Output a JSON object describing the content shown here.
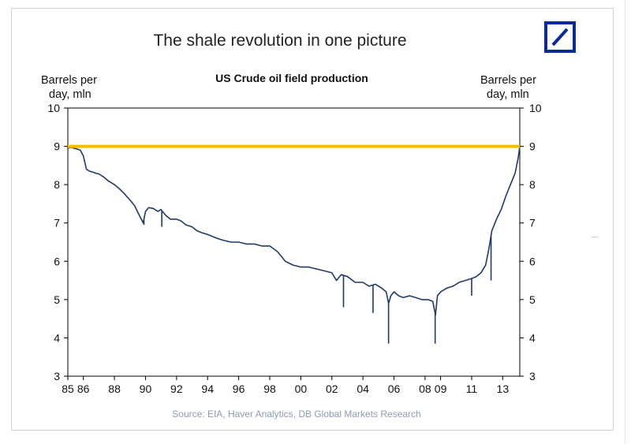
{
  "chart_data": {
    "type": "line",
    "title": "The shale revolution in one picture",
    "subtitle": "US Crude oil field production",
    "ylabel_left": [
      "Barrels per",
      "day, mln"
    ],
    "ylabel_right": [
      "Barrels per",
      "day, mln"
    ],
    "source": "Source: EIA, Haver Analytics, DB Global Markets Research",
    "ylim": [
      3,
      10
    ],
    "yticks": [
      3,
      4,
      5,
      6,
      7,
      8,
      9,
      10
    ],
    "xlim": [
      1985,
      2014.1
    ],
    "xticks": [
      {
        "value": 1985,
        "label": "85"
      },
      {
        "value": 1986,
        "label": "86"
      },
      {
        "value": 1988,
        "label": "88"
      },
      {
        "value": 1990,
        "label": "90"
      },
      {
        "value": 1992,
        "label": "92"
      },
      {
        "value": 1994,
        "label": "94"
      },
      {
        "value": 1996,
        "label": "96"
      },
      {
        "value": 1998,
        "label": "98"
      },
      {
        "value": 2000,
        "label": "00"
      },
      {
        "value": 2002,
        "label": "02"
      },
      {
        "value": 2004,
        "label": "04"
      },
      {
        "value": 2006,
        "label": "06"
      },
      {
        "value": 2008,
        "label": "08"
      },
      {
        "value": 2009,
        "label": "09"
      },
      {
        "value": 2011,
        "label": "11"
      },
      {
        "value": 2013,
        "label": "13"
      }
    ],
    "grid": false,
    "legend": "none",
    "reference_line": {
      "y": 9.0,
      "color": "#f5bd00"
    },
    "series": [
      {
        "color": "#1f3a68",
        "x": [
          1985.0,
          1985.2,
          1985.4,
          1985.6,
          1985.8,
          1986.0,
          1986.2,
          1986.4,
          1986.6,
          1986.8,
          1987.0,
          1987.3,
          1987.6,
          1988.0,
          1988.3,
          1988.6,
          1989.0,
          1989.3,
          1989.6,
          1989.85,
          1990.0,
          1990.2,
          1990.5,
          1990.8,
          1991.0,
          1991.3,
          1991.6,
          1992.0,
          1992.3,
          1992.6,
          1993.0,
          1993.3,
          1993.6,
          1994.0,
          1994.3,
          1994.6,
          1995.0,
          1995.5,
          1996.0,
          1996.5,
          1997.0,
          1997.5,
          1998.0,
          1998.5,
          1999.0,
          1999.5,
          2000.0,
          2000.5,
          2001.0,
          2001.5,
          2002.0,
          2002.3,
          2002.6,
          2003.0,
          2003.5,
          2004.0,
          2004.4,
          2004.8,
          2005.2,
          2005.5,
          2005.65,
          2005.8,
          2006.0,
          2006.3,
          2006.6,
          2007.0,
          2007.4,
          2007.8,
          2008.2,
          2008.5,
          2008.67,
          2008.8,
          2009.0,
          2009.4,
          2009.8,
          2010.2,
          2010.6,
          2011.0,
          2011.3,
          2011.6,
          2011.9,
          2012.1,
          2012.3,
          2012.6,
          2012.9,
          2013.2,
          2013.5,
          2013.8,
          2014.0,
          2014.1
        ],
        "values": [
          8.95,
          8.97,
          8.95,
          8.93,
          8.9,
          8.75,
          8.4,
          8.35,
          8.33,
          8.3,
          8.28,
          8.2,
          8.1,
          8.0,
          7.9,
          7.78,
          7.6,
          7.45,
          7.2,
          7.0,
          7.3,
          7.4,
          7.38,
          7.3,
          7.35,
          7.2,
          7.1,
          7.1,
          7.05,
          6.95,
          6.9,
          6.8,
          6.75,
          6.7,
          6.65,
          6.6,
          6.55,
          6.5,
          6.5,
          6.45,
          6.45,
          6.4,
          6.4,
          6.25,
          6.0,
          5.9,
          5.85,
          5.85,
          5.8,
          5.75,
          5.7,
          5.5,
          5.65,
          5.6,
          5.45,
          5.45,
          5.35,
          5.4,
          5.3,
          5.2,
          4.9,
          5.1,
          5.2,
          5.1,
          5.05,
          5.1,
          5.05,
          5.0,
          5.0,
          4.95,
          4.6,
          5.1,
          5.2,
          5.3,
          5.35,
          5.45,
          5.5,
          5.55,
          5.6,
          5.7,
          5.9,
          6.3,
          6.8,
          7.1,
          7.35,
          7.7,
          8.0,
          8.3,
          8.7,
          9.0
        ]
      }
    ],
    "spikes": [
      {
        "x": 1989.9,
        "y": 6.95
      },
      {
        "x": 1991.05,
        "y": 6.9
      },
      {
        "x": 2002.75,
        "y": 4.8
      },
      {
        "x": 2004.65,
        "y": 4.65
      },
      {
        "x": 2005.65,
        "y": 3.85
      },
      {
        "x": 2008.65,
        "y": 3.85
      },
      {
        "x": 2011.0,
        "y": 5.1
      },
      {
        "x": 2012.25,
        "y": 5.5
      }
    ]
  }
}
